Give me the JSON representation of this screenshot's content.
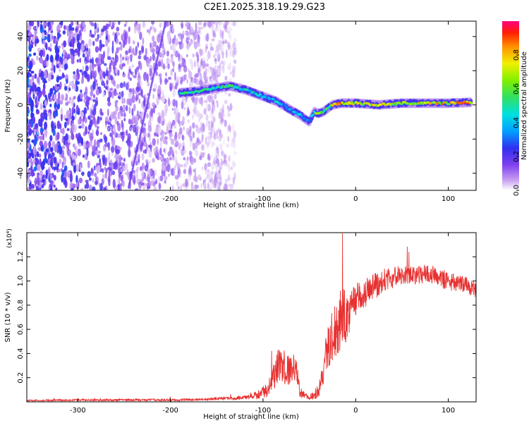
{
  "figure": {
    "title": "C2E1.2025.318.19.29.G23",
    "colors": {
      "snr_line": "#e83030",
      "axis": "#000000",
      "background": "#ffffff"
    }
  },
  "chart_data": [
    {
      "type": "heatmap",
      "xlabel": "Height of straight line (km)",
      "ylabel": "Frequency (Hz)",
      "xlim": [
        -355,
        130
      ],
      "ylim": [
        -50,
        49
      ],
      "xticks": [
        -300,
        -200,
        -100,
        0,
        100
      ],
      "yticks": [
        -40,
        -20,
        0,
        20,
        40
      ],
      "colorbar": {
        "label": "Normalized spectral amplitude",
        "range": [
          0,
          1
        ],
        "ticks": [
          "0.0",
          "0.2",
          "0.4",
          "0.6",
          "0.8"
        ],
        "tick_values": [
          0.0,
          0.2,
          0.4,
          0.6,
          0.8
        ],
        "colormap": [
          "#ffffff",
          "#c8a0f0",
          "#8040f0",
          "#3030f0",
          "#00a0ff",
          "#00e0e0",
          "#30e060",
          "#80f000",
          "#f0f000",
          "#ff9000",
          "#ff2000",
          "#ff0080"
        ]
      },
      "noise_region_x": [
        -355,
        -130
      ],
      "signal_track": {
        "x": [
          -190,
          -170,
          -150,
          -135,
          -120,
          -100,
          -85,
          -70,
          -60,
          -50,
          -45,
          -40,
          -35,
          -30,
          -25,
          -15,
          0,
          25,
          50,
          75,
          100,
          125
        ],
        "freq": [
          7,
          8,
          10,
          11,
          9,
          5,
          2,
          -3,
          -6,
          -10,
          -4,
          -5,
          -4,
          -2,
          0,
          1,
          1,
          0,
          1,
          1,
          1,
          1.5
        ],
        "amplitude": [
          0.5,
          0.55,
          0.55,
          0.6,
          0.5,
          0.45,
          0.45,
          0.4,
          0.45,
          0.4,
          0.6,
          0.65,
          0.55,
          0.6,
          0.7,
          0.85,
          0.7,
          0.75,
          0.7,
          0.75,
          0.8,
          0.85
        ]
      }
    },
    {
      "type": "line",
      "xlabel": "Height of straight line (km)",
      "ylabel": "SNR (10 * v/v)",
      "y_multiplier": "(x10⁴)",
      "xlim": [
        -355,
        130
      ],
      "ylim": [
        0,
        1.4
      ],
      "xticks": [
        -300,
        -200,
        -100,
        0,
        100
      ],
      "yticks": [
        "0.2",
        "0.4",
        "0.6",
        "0.8",
        "1.0",
        "1.2"
      ],
      "ytick_values": [
        0.2,
        0.4,
        0.6,
        0.8,
        1.0,
        1.2
      ],
      "series": [
        {
          "name": "SNR",
          "x": [
            -355,
            -300,
            -250,
            -200,
            -170,
            -150,
            -130,
            -115,
            -105,
            -95,
            -90,
            -85,
            -80,
            -75,
            -70,
            -65,
            -60,
            -55,
            -50,
            -45,
            -40,
            -35,
            -30,
            -25,
            -20,
            -15,
            -10,
            -5,
            0,
            10,
            20,
            30,
            40,
            50,
            60,
            70,
            80,
            90,
            100,
            110,
            120,
            130
          ],
          "y": [
            0.01,
            0.015,
            0.015,
            0.015,
            0.02,
            0.025,
            0.03,
            0.04,
            0.06,
            0.1,
            0.2,
            0.28,
            0.3,
            0.28,
            0.26,
            0.3,
            0.08,
            0.05,
            0.03,
            0.06,
            0.1,
            0.25,
            0.45,
            0.55,
            0.6,
            0.72,
            0.68,
            0.75,
            0.85,
            0.9,
            0.95,
            1.0,
            1.03,
            1.05,
            1.05,
            1.06,
            1.06,
            1.03,
            1.0,
            0.98,
            0.97,
            0.92
          ],
          "noise_amplitude": [
            0.005,
            0.008,
            0.008,
            0.01,
            0.01,
            0.012,
            0.015,
            0.02,
            0.04,
            0.06,
            0.12,
            0.15,
            0.14,
            0.14,
            0.12,
            0.14,
            0.05,
            0.03,
            0.02,
            0.04,
            0.06,
            0.12,
            0.2,
            0.22,
            0.22,
            0.28,
            0.2,
            0.16,
            0.14,
            0.12,
            0.11,
            0.1,
            0.09,
            0.08,
            0.08,
            0.08,
            0.08,
            0.08,
            0.08,
            0.07,
            0.07,
            0.07
          ]
        }
      ]
    }
  ]
}
